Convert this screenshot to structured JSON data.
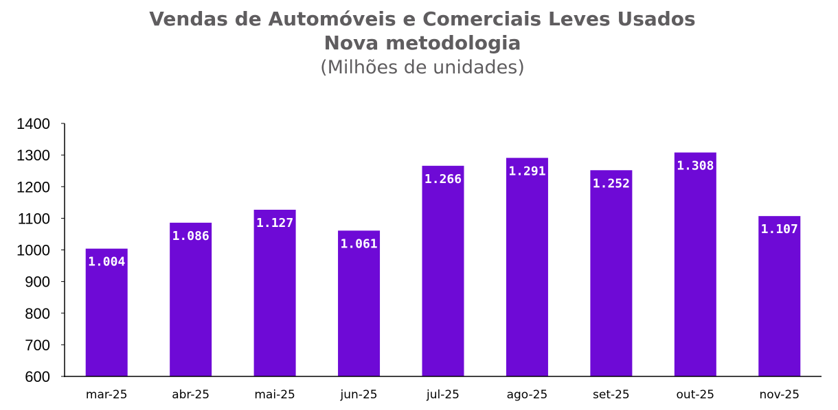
{
  "chart_data": {
    "type": "bar",
    "title": "Vendas de Automóveis e Comerciais Leves Usados",
    "subtitle": "Nova metodologia",
    "units": "(Milhões de unidades)",
    "categories": [
      "mar-25",
      "abr-25",
      "mai-25",
      "jun-25",
      "jul-25",
      "ago-25",
      "set-25",
      "out-25",
      "nov-25"
    ],
    "values": [
      1004,
      1086,
      1127,
      1061,
      1266,
      1291,
      1252,
      1308,
      1107
    ],
    "data_labels": [
      "1.004",
      "1.086",
      "1.127",
      "1.061",
      "1.266",
      "1.291",
      "1.252",
      "1.308",
      "1.107"
    ],
    "yticks": [
      600,
      700,
      800,
      900,
      1000,
      1100,
      1200,
      1300,
      1400
    ],
    "ylim": [
      600,
      1400
    ],
    "xlabel": "",
    "ylabel": "",
    "grid": false,
    "legend": "none",
    "bar_color": "#6e0ad6",
    "text_color": "#5f5d5f"
  }
}
